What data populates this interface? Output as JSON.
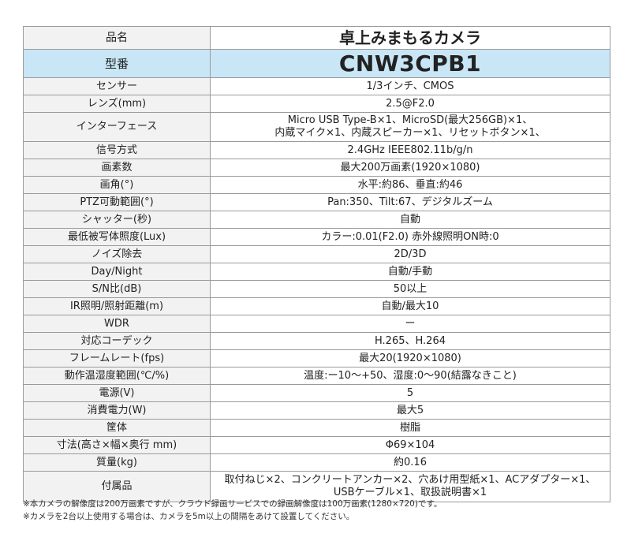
{
  "title_row": {
    "label": "品名",
    "value": "卓上みまもるカメラ"
  },
  "model_row": {
    "label": "型番",
    "value": "CNW3CPB1"
  },
  "rows": [
    {
      "label": "センサー",
      "lines": [
        "1/3インチ、CMOS"
      ]
    },
    {
      "label": "レンズ(mm)",
      "lines": [
        "2.5@F2.0"
      ]
    },
    {
      "label": "インターフェース",
      "lines": [
        "Micro USB Type-B×1、MicroSD(最大256GB)×1、",
        "内蔵マイク×1、内蔵スピーカー×1、リセットボタン×1、"
      ]
    },
    {
      "label": "信号方式",
      "lines": [
        "2.4GHz IEEE802.11b/g/n"
      ]
    },
    {
      "label": "画素数",
      "lines": [
        "最大200万画素(1920×1080)"
      ]
    },
    {
      "label": "画角(°)",
      "lines": [
        "水平:約86、垂直:約46"
      ]
    },
    {
      "label": "PTZ可動範囲(°)",
      "lines": [
        "Pan:350、Tilt:67、デジタルズーム"
      ]
    },
    {
      "label": "シャッター(秒)",
      "lines": [
        "自動"
      ]
    },
    {
      "label": "最低被写体照度(Lux)",
      "lines": [
        "カラー:0.01(F2.0) 赤外線照明ON時:0"
      ]
    },
    {
      "label": "ノイズ除去",
      "lines": [
        "2D/3D"
      ]
    },
    {
      "label": "Day/Night",
      "lines": [
        "自動/手動"
      ]
    },
    {
      "label": "S/N比(dB)",
      "lines": [
        "50以上"
      ]
    },
    {
      "label": "IR照明/照射距離(m)",
      "lines": [
        "自動/最大10"
      ]
    },
    {
      "label": "WDR",
      "lines": [
        "ー"
      ]
    },
    {
      "label": "対応コーデック",
      "lines": [
        "H.265、H.264"
      ]
    },
    {
      "label": "フレームレート(fps)",
      "lines": [
        "最大20(1920×1080)"
      ]
    },
    {
      "label": "動作温湿度範囲(℃/%)",
      "lines": [
        "温度:ー10〜+50、湿度:0〜90(結露なきこと)"
      ]
    },
    {
      "label": "電源(V)",
      "lines": [
        "5"
      ]
    },
    {
      "label": "消費電力(W)",
      "lines": [
        "最大5"
      ]
    },
    {
      "label": "筐体",
      "lines": [
        "樹脂"
      ]
    },
    {
      "label": "寸法(高さ×幅×奥行 mm)",
      "lines": [
        "Φ69×104"
      ]
    },
    {
      "label": "質量(kg)",
      "lines": [
        "約0.16"
      ]
    },
    {
      "label": "付属品",
      "lines": [
        "取付ねじ×2、コンクリートアンカー×2、穴あけ用型紙×1、ACアダプター×1、",
        "USBケーブル×1、取扱説明書×1"
      ]
    }
  ],
  "notes": [
    "※本カメラの解像度は200万画素ですが、クラウド録画サービスでの録画解像度は100万画素(1280×720)です。",
    "※カメラを2台以上使用する場合は、カメラを5m以上の間隔をあけて設置してください。"
  ],
  "colors": {
    "model_row_bg": "#c8e6f6",
    "label_bg": "#f2f2f2",
    "border": "#9a9a9a"
  }
}
